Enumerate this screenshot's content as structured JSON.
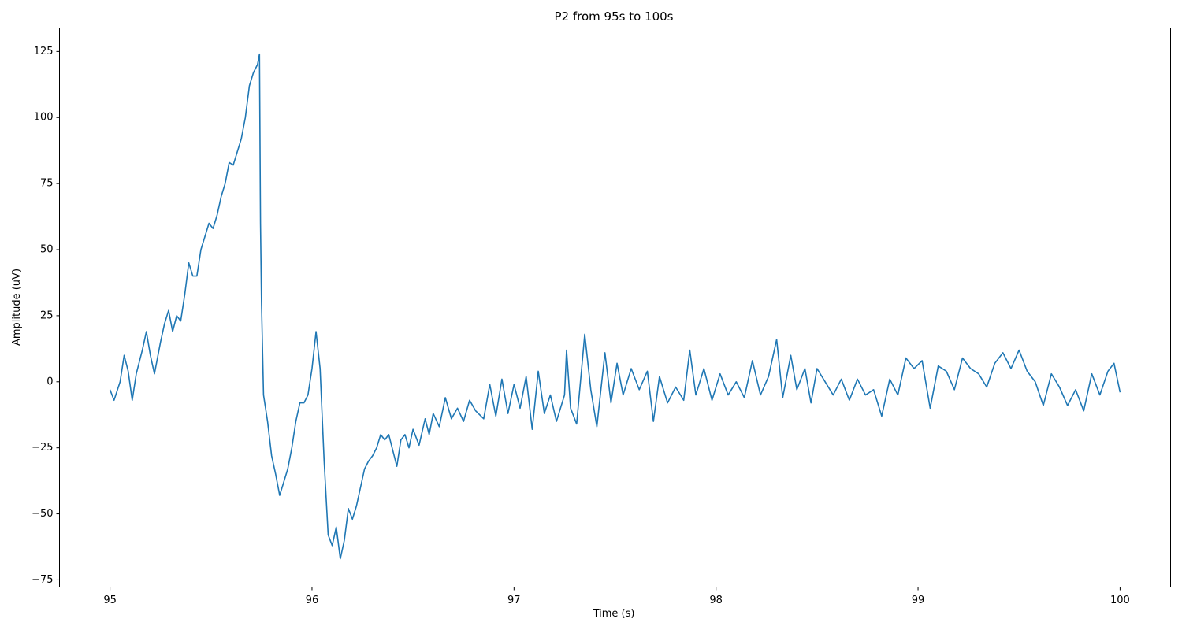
{
  "chart_data": {
    "type": "line",
    "title": "P2 from 95s to 100s",
    "x_label": "Time (s)",
    "y_label": "Amplitude (uV)",
    "color": "#1f77b4",
    "x": [
      95.0,
      95.02,
      95.05,
      95.07,
      95.09,
      95.11,
      95.13,
      95.16,
      95.18,
      95.2,
      95.22,
      95.25,
      95.27,
      95.29,
      95.31,
      95.33,
      95.35,
      95.37,
      95.39,
      95.41,
      95.43,
      95.45,
      95.47,
      95.49,
      95.51,
      95.53,
      95.55,
      95.57,
      95.59,
      95.61,
      95.63,
      95.65,
      95.67,
      95.69,
      95.71,
      95.73,
      95.74,
      95.745,
      95.75,
      95.76,
      95.78,
      95.8,
      95.82,
      95.84,
      95.86,
      95.88,
      95.9,
      95.92,
      95.94,
      95.96,
      95.98,
      96.0,
      96.02,
      96.04,
      96.06,
      96.08,
      96.1,
      96.12,
      96.14,
      96.16,
      96.18,
      96.2,
      96.22,
      96.24,
      96.26,
      96.28,
      96.3,
      96.32,
      96.34,
      96.36,
      96.38,
      96.4,
      96.42,
      96.44,
      96.46,
      96.48,
      96.5,
      96.53,
      96.56,
      96.58,
      96.6,
      96.63,
      96.66,
      96.69,
      96.72,
      96.75,
      96.78,
      96.81,
      96.85,
      96.88,
      96.91,
      96.94,
      96.97,
      97.0,
      97.03,
      97.06,
      97.09,
      97.12,
      97.15,
      97.18,
      97.21,
      97.25,
      97.26,
      97.28,
      97.31,
      97.35,
      97.38,
      97.41,
      97.45,
      97.48,
      97.51,
      97.54,
      97.58,
      97.62,
      97.66,
      97.69,
      97.72,
      97.76,
      97.8,
      97.84,
      97.87,
      97.9,
      97.94,
      97.98,
      98.02,
      98.06,
      98.1,
      98.14,
      98.18,
      98.22,
      98.26,
      98.3,
      98.33,
      98.37,
      98.4,
      98.44,
      98.47,
      98.5,
      98.54,
      98.58,
      98.62,
      98.66,
      98.7,
      98.74,
      98.78,
      98.82,
      98.86,
      98.9,
      98.94,
      98.98,
      99.02,
      99.06,
      99.1,
      99.14,
      99.18,
      99.22,
      99.26,
      99.3,
      99.34,
      99.38,
      99.42,
      99.46,
      99.5,
      99.54,
      99.58,
      99.62,
      99.66,
      99.7,
      99.74,
      99.78,
      99.82,
      99.86,
      99.9,
      99.94,
      99.97,
      100.0
    ],
    "values": [
      -3,
      -7,
      0,
      10,
      4,
      -7,
      3,
      12,
      19,
      10,
      3,
      15,
      22,
      27,
      19,
      25,
      23,
      33,
      45,
      40,
      40,
      50,
      55,
      60,
      58,
      63,
      70,
      75,
      83,
      82,
      87,
      92,
      100,
      112,
      117,
      120,
      124,
      60,
      30,
      -5,
      -15,
      -28,
      -35,
      -43,
      -38,
      -33,
      -25,
      -15,
      -8,
      -8,
      -5,
      5,
      19,
      5,
      -30,
      -58,
      -62,
      -55,
      -67,
      -60,
      -48,
      -52,
      -47,
      -40,
      -33,
      -30,
      -28,
      -25,
      -20,
      -22,
      -20,
      -26,
      -32,
      -22,
      -20,
      -25,
      -18,
      -24,
      -14,
      -20,
      -12,
      -17,
      -6,
      -14,
      -10,
      -15,
      -7,
      -11,
      -14,
      -1,
      -13,
      1,
      -12,
      -1,
      -10,
      2,
      -18,
      4,
      -12,
      -5,
      -15,
      -5,
      12,
      -10,
      -16,
      18,
      -3,
      -17,
      11,
      -8,
      7,
      -5,
      5,
      -3,
      4,
      -15,
      2,
      -8,
      -2,
      -7,
      12,
      -5,
      5,
      -7,
      3,
      -5,
      0,
      -6,
      8,
      -5,
      2,
      16,
      -6,
      10,
      -3,
      5,
      -8,
      5,
      0,
      -5,
      1,
      -7,
      1,
      -5,
      -3,
      -13,
      1,
      -5,
      9,
      5,
      8,
      -10,
      6,
      4,
      -3,
      9,
      5,
      3,
      -2,
      7,
      11,
      5,
      12,
      4,
      0,
      -9,
      3,
      -2,
      -9,
      -3,
      -11,
      3,
      -5,
      4,
      7,
      -4
    ],
    "xlim": [
      94.75,
      100.25
    ],
    "ylim": [
      -77.7,
      133.9
    ],
    "xticks": [
      95,
      96,
      97,
      98,
      99,
      100
    ],
    "yticks": [
      {
        "value": -75,
        "label": "−75"
      },
      {
        "value": -50,
        "label": "−50"
      },
      {
        "value": -25,
        "label": "−25"
      },
      0,
      25,
      50,
      75,
      100,
      125
    ]
  }
}
